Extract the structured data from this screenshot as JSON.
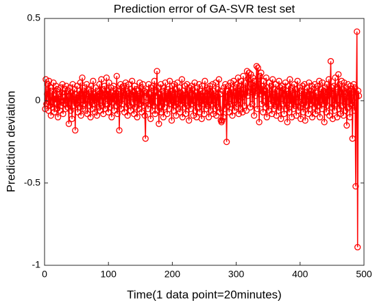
{
  "chart_data": {
    "type": "line",
    "title": "Prediction error of GA-SVR test set",
    "xlabel": "Time(1 data point=20minutes)",
    "ylabel": "Prediction deviation",
    "xlim": [
      0,
      500
    ],
    "xticks": [
      0,
      100,
      200,
      300,
      400,
      500
    ],
    "ylim": [
      -1,
      0.5
    ],
    "yticks": [
      -1,
      -0.5,
      0,
      0.5
    ],
    "series": [
      {
        "color": "#ff0000",
        "x": [
          1,
          2,
          3,
          4,
          5,
          6,
          7,
          8,
          9,
          10,
          11,
          12,
          13,
          14,
          15,
          16,
          17,
          18,
          19,
          20,
          21,
          22,
          23,
          24,
          25,
          26,
          27,
          28,
          29,
          30,
          31,
          32,
          33,
          34,
          35,
          36,
          37,
          38,
          39,
          40,
          41,
          42,
          43,
          44,
          45,
          46,
          47,
          48,
          49,
          50,
          51,
          52,
          53,
          54,
          55,
          56,
          57,
          58,
          59,
          60,
          61,
          62,
          63,
          64,
          65,
          66,
          67,
          68,
          69,
          70,
          71,
          72,
          73,
          74,
          75,
          76,
          77,
          78,
          79,
          80,
          81,
          82,
          83,
          84,
          85,
          86,
          87,
          88,
          89,
          90,
          91,
          92,
          93,
          94,
          95,
          96,
          97,
          98,
          99,
          100,
          101,
          102,
          103,
          104,
          105,
          106,
          107,
          108,
          109,
          110,
          111,
          112,
          113,
          114,
          115,
          116,
          117,
          118,
          119,
          120,
          121,
          122,
          123,
          124,
          125,
          126,
          127,
          128,
          129,
          130,
          131,
          132,
          133,
          134,
          135,
          136,
          137,
          138,
          139,
          140,
          141,
          142,
          143,
          144,
          145,
          146,
          147,
          148,
          149,
          150,
          151,
          152,
          153,
          154,
          155,
          156,
          157,
          158,
          159,
          160,
          161,
          162,
          163,
          164,
          165,
          166,
          167,
          168,
          169,
          170,
          171,
          172,
          173,
          174,
          175,
          176,
          177,
          178,
          179,
          180,
          181,
          182,
          183,
          184,
          185,
          186,
          187,
          188,
          189,
          190,
          191,
          192,
          193,
          194,
          195,
          196,
          197,
          198,
          199,
          200,
          201,
          202,
          203,
          204,
          205,
          206,
          207,
          208,
          209,
          210,
          211,
          212,
          213,
          214,
          215,
          216,
          217,
          218,
          219,
          220,
          221,
          222,
          223,
          224,
          225,
          226,
          227,
          228,
          229,
          230,
          231,
          232,
          233,
          234,
          235,
          236,
          237,
          238,
          239,
          240,
          241,
          242,
          243,
          244,
          245,
          246,
          247,
          248,
          249,
          250,
          251,
          252,
          253,
          254,
          255,
          256,
          257,
          258,
          259,
          260,
          261,
          262,
          263,
          264,
          265,
          266,
          267,
          268,
          269,
          270,
          271,
          272,
          273,
          274,
          275,
          276,
          277,
          278,
          279,
          280,
          281,
          282,
          283,
          284,
          285,
          286,
          287,
          288,
          289,
          290,
          291,
          292,
          293,
          294,
          295,
          296,
          297,
          298,
          299,
          300,
          301,
          302,
          303,
          304,
          305,
          306,
          307,
          308,
          309,
          310,
          311,
          312,
          313,
          314,
          315,
          316,
          317,
          318,
          319,
          320,
          321,
          322,
          323,
          324,
          325,
          326,
          327,
          328,
          329,
          330,
          331,
          332,
          333,
          334,
          335,
          336,
          337,
          338,
          339,
          340,
          341,
          342,
          343,
          344,
          345,
          346,
          347,
          348,
          349,
          350,
          351,
          352,
          353,
          354,
          355,
          356,
          357,
          358,
          359,
          360,
          361,
          362,
          363,
          364,
          365,
          366,
          367,
          368,
          369,
          370,
          371,
          372,
          373,
          374,
          375,
          376,
          377,
          378,
          379,
          380,
          381,
          382,
          383,
          384,
          385,
          386,
          387,
          388,
          389,
          390,
          391,
          392,
          393,
          394,
          395,
          396,
          397,
          398,
          399,
          400,
          401,
          402,
          403,
          404,
          405,
          406,
          407,
          408,
          409,
          410,
          411,
          412,
          413,
          414,
          415,
          416,
          417,
          418,
          419,
          420,
          421,
          422,
          423,
          424,
          425,
          426,
          427,
          428,
          429,
          430,
          431,
          432,
          433,
          434,
          435,
          436,
          437,
          438,
          439,
          440,
          441,
          442,
          443,
          444,
          445,
          446,
          447,
          448,
          449,
          450,
          451,
          452,
          453,
          454,
          455,
          456,
          457,
          458,
          459,
          460,
          461,
          462,
          463,
          464,
          465,
          466,
          467,
          468,
          469,
          470,
          471,
          472,
          473,
          474,
          475,
          476,
          477,
          478,
          479,
          480,
          481,
          482,
          483,
          484,
          485,
          486,
          487,
          488,
          489,
          490,
          491,
          492
        ],
        "values": [
          -0.05,
          0.13,
          -0.02,
          0.04,
          0.1,
          -0.06,
          0.12,
          -0.03,
          0.08,
          -0.09,
          0.02,
          0.06,
          -0.04,
          0.11,
          -0.07,
          0.03,
          -0.01,
          0.09,
          -0.05,
          0.07,
          -0.1,
          0.04,
          0.01,
          -0.06,
          0.08,
          -0.03,
          0.05,
          0.1,
          -0.08,
          0.02,
          -0.02,
          0.07,
          -0.05,
          0.09,
          0.0,
          -0.04,
          0.06,
          -0.14,
          0.03,
          0.08,
          -0.06,
          0.05,
          -0.11,
          0.1,
          0.01,
          -0.03,
          0.07,
          -0.18,
          0.04,
          -0.02,
          0.09,
          -0.07,
          0.02,
          0.06,
          -0.04,
          0.11,
          -0.09,
          0.03,
          0.14,
          -0.05,
          0.06,
          -0.02,
          0.08,
          -0.06,
          0.04,
          0.1,
          -0.08,
          0.01,
          0.07,
          -0.03,
          0.05,
          -0.1,
          0.09,
          0.02,
          -0.05,
          0.12,
          -0.02,
          0.04,
          -0.07,
          0.08,
          0.03,
          -0.09,
          0.06,
          0.01,
          -0.04,
          0.1,
          -0.06,
          0.05,
          0.13,
          -0.03,
          0.07,
          -0.08,
          0.02,
          0.09,
          -0.05,
          0.04,
          0.14,
          -0.02,
          0.06,
          -0.07,
          0.11,
          -0.04,
          0.02,
          0.08,
          -0.1,
          0.05,
          -0.01,
          0.09,
          -0.06,
          0.03,
          0.07,
          -0.03,
          0.15,
          -0.08,
          0.04,
          0.06,
          -0.18,
          0.02,
          0.1,
          -0.05,
          0.08,
          -0.02,
          0.05,
          0.09,
          -0.07,
          0.03,
          0.11,
          -0.04,
          0.06,
          -0.09,
          0.02,
          0.1,
          -0.03,
          0.07,
          -0.06,
          0.04,
          0.12,
          -0.01,
          0.05,
          -0.08,
          0.09,
          -0.04,
          0.03,
          0.07,
          -0.1,
          0.06,
          0.01,
          -0.05,
          0.11,
          -0.02,
          0.08,
          -0.07,
          0.04,
          0.1,
          -0.03,
          0.06,
          -0.09,
          -0.23,
          0.05,
          0.02,
          0.07,
          -0.05,
          0.1,
          -0.02,
          0.04,
          -0.11,
          0.08,
          0.01,
          -0.06,
          0.09,
          -0.03,
          0.12,
          -0.08,
          0.05,
          0.03,
          0.18,
          -0.06,
          0.08,
          -0.14,
          0.04,
          -0.03,
          0.1,
          -0.07,
          0.06,
          0.02,
          -0.1,
          0.08,
          -0.04,
          0.11,
          -0.01,
          0.05,
          -0.08,
          0.07,
          0.03,
          -0.05,
          0.12,
          -0.02,
          0.06,
          -0.12,
          0.09,
          0.02,
          -0.06,
          0.1,
          -0.03,
          0.07,
          -0.09,
          0.04,
          0.11,
          -0.05,
          0.01,
          0.08,
          -0.07,
          0.05,
          -0.02,
          0.13,
          -0.1,
          0.06,
          0.02,
          -0.04,
          0.09,
          -0.08,
          0.04,
          0.1,
          -0.03,
          0.06,
          -0.12,
          0.08,
          0.01,
          -0.05,
          0.09,
          -0.02,
          0.07,
          -0.09,
          0.03,
          0.11,
          -0.06,
          0.05,
          -0.1,
          0.08,
          0.02,
          -0.04,
          0.1,
          -0.07,
          0.06,
          0.03,
          -0.11,
          0.09,
          -0.02,
          0.05,
          -0.08,
          0.12,
          0.01,
          -0.05,
          0.08,
          -0.03,
          0.07,
          -0.1,
          0.04,
          0.09,
          -0.06,
          0.05,
          -0.02,
          0.1,
          -0.08,
          0.06,
          0.03,
          -0.05,
          0.11,
          -0.09,
          0.02,
          0.07,
          -0.04,
          0.13,
          -0.07,
          0.04,
          -0.12,
          -0.13,
          -0.12,
          0.06,
          -0.1,
          0.08,
          -0.05,
          0.1,
          0.02,
          -0.25,
          0.06,
          -0.03,
          0.09,
          -0.07,
          0.04,
          0.11,
          -0.02,
          0.07,
          -0.09,
          0.05,
          0.12,
          -0.06,
          0.03,
          0.08,
          -0.04,
          0.1,
          -0.02,
          0.14,
          -0.08,
          0.06,
          0.09,
          -0.05,
          0.12,
          0.02,
          -0.07,
          0.15,
          0.04,
          -0.03,
          0.11,
          0.07,
          -0.06,
          0.18,
          0.03,
          0.13,
          0.17,
          0.05,
          -0.04,
          0.16,
          0.1,
          -0.02,
          0.14,
          0.06,
          -0.09,
          0.12,
          0.03,
          0.08,
          0.21,
          -0.05,
          0.2,
          0.1,
          -0.13,
          0.15,
          0.04,
          0.17,
          -0.02,
          0.09,
          -0.07,
          0.12,
          0.03,
          0.06,
          -0.04,
          0.14,
          -0.1,
          0.08,
          0.01,
          -0.06,
          0.11,
          0.04,
          -0.02,
          0.09,
          -0.08,
          0.13,
          0.02,
          -0.05,
          0.07,
          -0.03,
          0.1,
          -0.09,
          0.06,
          0.02,
          -0.06,
          0.12,
          -0.04,
          0.08,
          -0.11,
          0.05,
          0.09,
          -0.02,
          0.07,
          -0.08,
          0.03,
          0.11,
          -0.05,
          0.06,
          -0.13,
          0.04,
          0.09,
          -0.07,
          0.13,
          -0.02,
          0.06,
          -0.1,
          0.08,
          0.01,
          -0.05,
          0.1,
          -0.03,
          0.07,
          -0.09,
          0.04,
          0.12,
          -0.06,
          0.02,
          0.08,
          -0.04,
          -0.11,
          0.06,
          -0.02,
          0.09,
          -0.07,
          0.04,
          0.1,
          -0.12,
          0.05,
          -0.03,
          0.08,
          0.01,
          -0.08,
          0.11,
          -0.05,
          0.06,
          -0.02,
          0.09,
          -0.1,
          0.03,
          0.07,
          -0.04,
          0.1,
          -0.08,
          0.05,
          0.02,
          -0.06,
          0.09,
          -0.03,
          0.12,
          -0.1,
          0.04,
          0.07,
          -0.05,
          0.11,
          -0.02,
          0.06,
          -0.13,
          0.08,
          0.02,
          -0.07,
          0.1,
          -0.03,
          0.05,
          0.13,
          -0.09,
          0.06,
          0.24,
          -0.04,
          0.08,
          -0.11,
          0.03,
          0.09,
          -0.06,
          0.14,
          -0.02,
          0.05,
          -0.1,
          0.07,
          0.16,
          -0.05,
          0.1,
          -0.08,
          0.04,
          0.12,
          -0.03,
          0.07,
          -0.09,
          0.11,
          0.01,
          -0.06,
          0.08,
          -0.15,
          0.05,
          0.1,
          -0.04,
          0.06,
          -0.1,
          0.09,
          -0.02,
          0.07,
          -0.23,
          0.05,
          0.1,
          -0.06,
          0.08,
          -0.52,
          0.02,
          0.42,
          -0.89,
          0.06,
          0.03
        ]
      }
    ]
  }
}
